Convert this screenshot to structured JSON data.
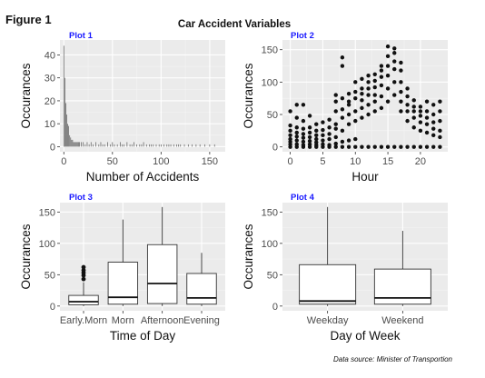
{
  "figure_label": "Figure 1",
  "main_title": "Car Accident Variables",
  "source_note": "Data source: Minister of Transportion",
  "colors": {
    "panel_bg": "#ebebeb",
    "grid_major": "#ffffff",
    "grid_minor": "#f4f4f4",
    "plot_tag": "#1a1aff",
    "ink": "#111111",
    "tick_text": "#4d4d4d",
    "bar_fill": "#595959",
    "box_fill": "#ffffff"
  },
  "chart_data": [
    {
      "type": "bar",
      "tag": "Plot 1",
      "xlabel": "Number of Accidents",
      "ylabel": "Occurances",
      "xlim": [
        -4,
        166
      ],
      "ylim": [
        -2.2,
        46.5
      ],
      "xticks": [
        0,
        50,
        100,
        150
      ],
      "yticks": [
        0,
        10,
        20,
        30,
        40
      ],
      "grid": true,
      "x": [
        0,
        1,
        2,
        3,
        4,
        5,
        6,
        7,
        8,
        9,
        10,
        11,
        12,
        13,
        14,
        15,
        16,
        18,
        20,
        22,
        24,
        26,
        28,
        30,
        33,
        36,
        38,
        40,
        42,
        45,
        48,
        50,
        52,
        55,
        58,
        60,
        62,
        65,
        68,
        70,
        72,
        75,
        78,
        80,
        82,
        85,
        88,
        90,
        92,
        95,
        98,
        100,
        103,
        106,
        108,
        110,
        113,
        116,
        118,
        120,
        124,
        128,
        132,
        136,
        140,
        145,
        150,
        155
      ],
      "values": [
        44,
        30,
        19,
        14,
        10,
        9,
        5,
        4,
        3,
        3,
        2,
        2,
        2,
        2,
        2,
        2,
        2,
        2,
        2,
        1,
        2,
        1,
        2,
        1,
        2,
        1,
        2,
        1,
        1,
        2,
        1,
        2,
        1,
        1,
        2,
        1,
        1,
        2,
        1,
        1,
        2,
        1,
        1,
        1,
        2,
        1,
        1,
        1,
        1,
        1,
        1,
        1,
        1,
        1,
        1,
        1,
        1,
        1,
        1,
        1,
        1,
        1,
        1,
        1,
        1,
        1,
        1,
        1
      ]
    },
    {
      "type": "scatter",
      "tag": "Plot 2",
      "xlabel": "Hour",
      "ylabel": "Occurances",
      "xlim": [
        -1.2,
        24.2
      ],
      "ylim": [
        -7.5,
        165
      ],
      "xticks": [
        0,
        5,
        10,
        15,
        20
      ],
      "yticks": [
        0,
        50,
        100,
        150
      ],
      "grid": true,
      "points": [
        [
          0,
          0
        ],
        [
          0,
          4
        ],
        [
          0,
          8
        ],
        [
          0,
          12
        ],
        [
          0,
          18
        ],
        [
          0,
          25
        ],
        [
          0,
          33
        ],
        [
          0,
          55
        ],
        [
          1,
          0
        ],
        [
          1,
          4
        ],
        [
          1,
          10
        ],
        [
          1,
          16
        ],
        [
          1,
          22
        ],
        [
          1,
          30
        ],
        [
          1,
          45
        ],
        [
          1,
          65
        ],
        [
          2,
          0
        ],
        [
          2,
          3
        ],
        [
          2,
          8
        ],
        [
          2,
          14
        ],
        [
          2,
          20
        ],
        [
          2,
          28
        ],
        [
          2,
          40
        ],
        [
          2,
          65
        ],
        [
          3,
          0
        ],
        [
          3,
          4
        ],
        [
          3,
          9
        ],
        [
          3,
          15
        ],
        [
          3,
          22
        ],
        [
          3,
          30
        ],
        [
          3,
          48
        ],
        [
          4,
          0
        ],
        [
          4,
          3
        ],
        [
          4,
          7
        ],
        [
          4,
          12
        ],
        [
          4,
          18
        ],
        [
          4,
          25
        ],
        [
          4,
          35
        ],
        [
          5,
          0
        ],
        [
          5,
          4
        ],
        [
          5,
          10
        ],
        [
          5,
          18
        ],
        [
          5,
          26
        ],
        [
          5,
          38
        ],
        [
          6,
          0
        ],
        [
          6,
          3
        ],
        [
          6,
          12
        ],
        [
          6,
          20
        ],
        [
          6,
          30
        ],
        [
          6,
          42
        ],
        [
          7,
          0
        ],
        [
          7,
          5
        ],
        [
          7,
          15
        ],
        [
          7,
          28
        ],
        [
          7,
          35
        ],
        [
          7,
          55
        ],
        [
          7,
          70
        ],
        [
          7,
          80
        ],
        [
          8,
          0
        ],
        [
          8,
          8
        ],
        [
          8,
          25
        ],
        [
          8,
          45
        ],
        [
          8,
          58
        ],
        [
          8,
          75
        ],
        [
          8,
          125
        ],
        [
          8,
          138
        ],
        [
          9,
          0
        ],
        [
          9,
          10
        ],
        [
          9,
          35
        ],
        [
          9,
          50
        ],
        [
          9,
          65
        ],
        [
          9,
          70
        ],
        [
          9,
          82
        ],
        [
          10,
          0
        ],
        [
          10,
          12
        ],
        [
          10,
          40
        ],
        [
          10,
          55
        ],
        [
          10,
          75
        ],
        [
          10,
          85
        ],
        [
          10,
          100
        ],
        [
          11,
          0
        ],
        [
          11,
          45
        ],
        [
          11,
          60
        ],
        [
          11,
          72
        ],
        [
          11,
          82
        ],
        [
          11,
          90
        ],
        [
          11,
          105
        ],
        [
          12,
          0
        ],
        [
          12,
          50
        ],
        [
          12,
          65
        ],
        [
          12,
          80
        ],
        [
          12,
          90
        ],
        [
          12,
          100
        ],
        [
          12,
          110
        ],
        [
          13,
          0
        ],
        [
          13,
          55
        ],
        [
          13,
          70
        ],
        [
          13,
          80
        ],
        [
          13,
          92
        ],
        [
          13,
          102
        ],
        [
          13,
          112
        ],
        [
          14,
          0
        ],
        [
          14,
          60
        ],
        [
          14,
          78
        ],
        [
          14,
          95
        ],
        [
          14,
          108
        ],
        [
          14,
          118
        ],
        [
          14,
          125
        ],
        [
          15,
          0
        ],
        [
          15,
          70
        ],
        [
          15,
          90
        ],
        [
          15,
          110
        ],
        [
          15,
          125
        ],
        [
          15,
          140
        ],
        [
          15,
          155
        ],
        [
          16,
          0
        ],
        [
          16,
          80
        ],
        [
          16,
          100
        ],
        [
          16,
          120
        ],
        [
          16,
          132
        ],
        [
          16,
          145
        ],
        [
          16,
          152
        ],
        [
          17,
          0
        ],
        [
          17,
          55
        ],
        [
          17,
          70
        ],
        [
          17,
          85
        ],
        [
          17,
          100
        ],
        [
          17,
          118
        ],
        [
          17,
          130
        ],
        [
          18,
          0
        ],
        [
          18,
          40
        ],
        [
          18,
          55
        ],
        [
          18,
          65
        ],
        [
          18,
          78
        ],
        [
          18,
          90
        ],
        [
          19,
          0
        ],
        [
          19,
          30
        ],
        [
          19,
          45
        ],
        [
          19,
          55
        ],
        [
          19,
          62
        ],
        [
          19,
          72
        ],
        [
          20,
          0
        ],
        [
          20,
          25
        ],
        [
          20,
          38
        ],
        [
          20,
          48
        ],
        [
          20,
          55
        ],
        [
          20,
          62
        ],
        [
          21,
          0
        ],
        [
          21,
          22
        ],
        [
          21,
          35
        ],
        [
          21,
          45
        ],
        [
          21,
          55
        ],
        [
          21,
          70
        ],
        [
          22,
          0
        ],
        [
          22,
          18
        ],
        [
          22,
          28
        ],
        [
          22,
          38
        ],
        [
          22,
          50
        ],
        [
          22,
          65
        ],
        [
          23,
          0
        ],
        [
          23,
          15
        ],
        [
          23,
          25
        ],
        [
          23,
          40
        ],
        [
          23,
          55
        ],
        [
          23,
          70
        ]
      ]
    },
    {
      "type": "box",
      "tag": "Plot 3",
      "xlabel": "Time of Day",
      "ylabel": "Occurances",
      "ylim": [
        -7.5,
        165
      ],
      "yticks": [
        0,
        50,
        100,
        150
      ],
      "grid": true,
      "categories": [
        "Early.Morn",
        "Morn",
        "Afternoon",
        "Evening"
      ],
      "boxes": [
        {
          "min": 0,
          "q1": 2,
          "median": 7,
          "q3": 17,
          "max": 38,
          "outliers": [
            43,
            49,
            53,
            57,
            62
          ]
        },
        {
          "min": 0,
          "q1": 3,
          "median": 14,
          "q3": 70,
          "max": 138,
          "outliers": []
        },
        {
          "min": 0,
          "q1": 4,
          "median": 36,
          "q3": 98,
          "max": 158,
          "outliers": []
        },
        {
          "min": 0,
          "q1": 3,
          "median": 13,
          "q3": 52,
          "max": 85,
          "outliers": []
        }
      ]
    },
    {
      "type": "box",
      "tag": "Plot 4",
      "xlabel": "Day of Week",
      "ylabel": "Occurances",
      "ylim": [
        -7.5,
        165
      ],
      "yticks": [
        0,
        50,
        100,
        150
      ],
      "grid": true,
      "categories": [
        "Weekday",
        "Weekend"
      ],
      "boxes": [
        {
          "min": 0,
          "q1": 3,
          "median": 8,
          "q3": 66,
          "max": 158,
          "outliers": []
        },
        {
          "min": 0,
          "q1": 3,
          "median": 13,
          "q3": 59,
          "max": 120,
          "outliers": []
        }
      ]
    }
  ]
}
